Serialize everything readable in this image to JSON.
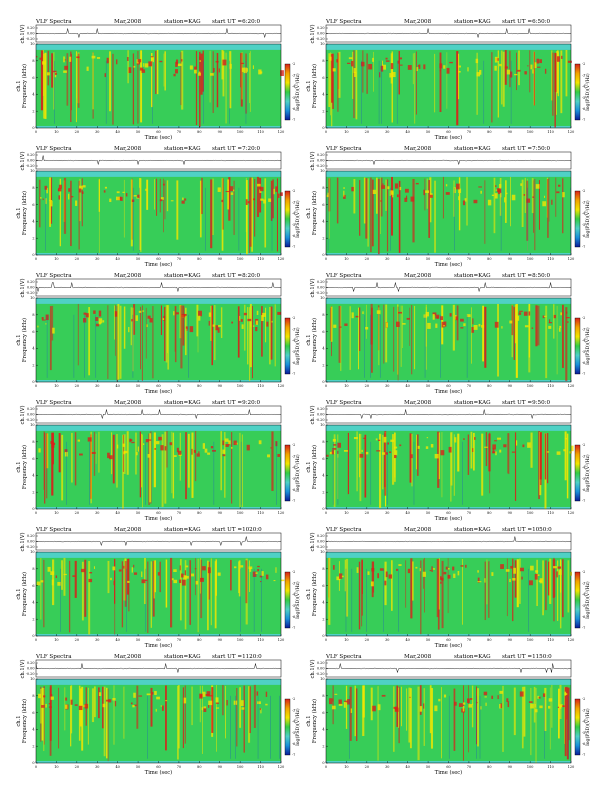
{
  "colors": {
    "spectrogram_background": "#4fd1c5",
    "spectrogram_mid": "#33cc44",
    "spectrogram_high": "#f2e600",
    "spectrogram_peak": "#d9201a",
    "spectrogram_low": "#1a3fd9",
    "colorbar_stops": [
      "#d9201a",
      "#f2a300",
      "#f2e600",
      "#33cc44",
      "#4fd1c5",
      "#1a8fd9",
      "#0a1a99"
    ]
  },
  "chart_data": [
    {
      "type": "heatmap",
      "title": "VLF Spectra",
      "date": "Mar,2008",
      "station": "station=KAG",
      "start_label": "start UT =6:20:0",
      "top_axis_label": "ch.1(V)",
      "top_ticks": [
        "0.20",
        "0.00",
        "-0.20"
      ],
      "ylabel": "Frequency (kHz)",
      "ylabel_prefix": "ch.1",
      "xlabel": "Time (sec)",
      "xlim": [
        0,
        120
      ],
      "ylim": [
        0,
        10
      ],
      "x_ticks": [
        "0",
        "10",
        "20",
        "30",
        "40",
        "50",
        "60",
        "70",
        "80",
        "90",
        "100",
        "110",
        "120"
      ],
      "y_ticks": [
        "0",
        "2",
        "4",
        "6",
        "8",
        "10"
      ],
      "colorbar_label": "log(PSD)(V²/Hz)",
      "colorbar_ticks": [
        "-2",
        "-3",
        "-4",
        "-5",
        "-6",
        "-7"
      ]
    },
    {
      "type": "heatmap",
      "title": "VLF Spectra",
      "date": "Mar,2008",
      "station": "station=KAG",
      "start_label": "start UT =6:50:0",
      "top_axis_label": "ch.1(V)",
      "top_ticks": [
        "0.20",
        "0.00",
        "-0.20"
      ],
      "ylabel": "Frequency (kHz)",
      "ylabel_prefix": "ch.1",
      "xlabel": "Time (sec)",
      "xlim": [
        0,
        120
      ],
      "ylim": [
        0,
        10
      ],
      "x_ticks": [
        "0",
        "10",
        "20",
        "30",
        "40",
        "50",
        "60",
        "70",
        "80",
        "90",
        "100",
        "110",
        "120"
      ],
      "y_ticks": [
        "0",
        "2",
        "4",
        "6",
        "8",
        "10"
      ],
      "colorbar_label": "log(PSD)(V²/Hz)",
      "colorbar_ticks": [
        "-2",
        "-3",
        "-4",
        "-5",
        "-6",
        "-7"
      ]
    },
    {
      "type": "heatmap",
      "title": "VLF Spectra",
      "date": "Mar,2008",
      "station": "station=KAG",
      "start_label": "start UT =7:20:0",
      "top_axis_label": "ch.1(V)",
      "top_ticks": [
        "0.20",
        "0.00",
        "-0.20"
      ],
      "ylabel": "Frequency (kHz)",
      "ylabel_prefix": "ch.1",
      "xlabel": "Time (sec)",
      "xlim": [
        0,
        120
      ],
      "ylim": [
        0,
        10
      ],
      "x_ticks": [
        "0",
        "10",
        "20",
        "30",
        "40",
        "50",
        "60",
        "70",
        "80",
        "90",
        "100",
        "110",
        "120"
      ],
      "y_ticks": [
        "0",
        "2",
        "4",
        "6",
        "8",
        "10"
      ],
      "colorbar_label": "log(PSD)(V²/Hz)",
      "colorbar_ticks": [
        "-2",
        "-3",
        "-4",
        "-5",
        "-6",
        "-7"
      ]
    },
    {
      "type": "heatmap",
      "title": "VLF Spectra",
      "date": "Mar,2008",
      "station": "station=KAG",
      "start_label": "start UT =7:50:0",
      "top_axis_label": "ch.1(V)",
      "top_ticks": [
        "0.20",
        "0.00",
        "-0.20"
      ],
      "ylabel": "Frequency (kHz)",
      "ylabel_prefix": "ch.1",
      "xlabel": "Time (sec)",
      "xlim": [
        0,
        120
      ],
      "ylim": [
        0,
        10
      ],
      "x_ticks": [
        "0",
        "10",
        "20",
        "30",
        "40",
        "50",
        "60",
        "70",
        "80",
        "90",
        "100",
        "110",
        "120"
      ],
      "y_ticks": [
        "0",
        "2",
        "4",
        "6",
        "8",
        "10"
      ],
      "colorbar_label": "log(PSD)(V²/Hz)",
      "colorbar_ticks": [
        "-2",
        "-3",
        "-4",
        "-5",
        "-6",
        "-7"
      ]
    },
    {
      "type": "heatmap",
      "title": "VLF Spectra",
      "date": "Mar,2008",
      "station": "station=KAG",
      "start_label": "start UT =8:20:0",
      "top_axis_label": "ch.1(V)",
      "top_ticks": [
        "0.20",
        "0.00",
        "-0.20"
      ],
      "ylabel": "Frequency (kHz)",
      "ylabel_prefix": "ch.1",
      "xlabel": "Time (sec)",
      "xlim": [
        0,
        120
      ],
      "ylim": [
        0,
        10
      ],
      "x_ticks": [
        "0",
        "10",
        "20",
        "30",
        "40",
        "50",
        "60",
        "70",
        "80",
        "90",
        "100",
        "110",
        "120"
      ],
      "y_ticks": [
        "0",
        "2",
        "4",
        "6",
        "8",
        "10"
      ],
      "colorbar_label": "log(PSD)(V²/Hz)",
      "colorbar_ticks": [
        "-2",
        "-3",
        "-4",
        "-5",
        "-6",
        "-7"
      ]
    },
    {
      "type": "heatmap",
      "title": "VLF Spectra",
      "date": "Mar,2008",
      "station": "station=KAG",
      "start_label": "start UT =8:50:0",
      "top_axis_label": "ch.1(V)",
      "top_ticks": [
        "0.20",
        "0.00",
        "-0.20"
      ],
      "ylabel": "Frequency (kHz)",
      "ylabel_prefix": "ch.1",
      "xlabel": "Time (sec)",
      "xlim": [
        0,
        120
      ],
      "ylim": [
        0,
        10
      ],
      "x_ticks": [
        "0",
        "10",
        "20",
        "30",
        "40",
        "50",
        "60",
        "70",
        "80",
        "90",
        "100",
        "110",
        "120"
      ],
      "y_ticks": [
        "0",
        "2",
        "4",
        "6",
        "8",
        "10"
      ],
      "colorbar_label": "log(PSD)(V²/Hz)",
      "colorbar_ticks": [
        "-2",
        "-3",
        "-4",
        "-5",
        "-6",
        "-7"
      ]
    },
    {
      "type": "heatmap",
      "title": "VLF Spectra",
      "date": "Mar,2008",
      "station": "station=KAG",
      "start_label": "start UT =9:20:0",
      "top_axis_label": "ch.1(V)",
      "top_ticks": [
        "0.20",
        "0.00",
        "-0.20"
      ],
      "ylabel": "Frequency (kHz)",
      "ylabel_prefix": "ch.1",
      "xlabel": "Time (sec)",
      "xlim": [
        0,
        120
      ],
      "ylim": [
        0,
        10
      ],
      "x_ticks": [
        "0",
        "10",
        "20",
        "30",
        "40",
        "50",
        "60",
        "70",
        "80",
        "90",
        "100",
        "110",
        "120"
      ],
      "y_ticks": [
        "0",
        "2",
        "4",
        "6",
        "8",
        "10"
      ],
      "colorbar_label": "log(PSD)(V²/Hz)",
      "colorbar_ticks": [
        "-2",
        "-3",
        "-4",
        "-5",
        "-6",
        "-7"
      ]
    },
    {
      "type": "heatmap",
      "title": "VLF Spectra",
      "date": "Mar,2008",
      "station": "station=KAG",
      "start_label": "start UT =9:50:0",
      "top_axis_label": "ch.1(V)",
      "top_ticks": [
        "0.20",
        "0.00",
        "-0.20"
      ],
      "ylabel": "Frequency (kHz)",
      "ylabel_prefix": "ch.1",
      "xlabel": "Time (sec)",
      "xlim": [
        0,
        120
      ],
      "ylim": [
        0,
        10
      ],
      "x_ticks": [
        "0",
        "10",
        "20",
        "30",
        "40",
        "50",
        "60",
        "70",
        "80",
        "90",
        "100",
        "110",
        "120"
      ],
      "y_ticks": [
        "0",
        "2",
        "4",
        "6",
        "8",
        "10"
      ],
      "colorbar_label": "log(PSD)(V²/Hz)",
      "colorbar_ticks": [
        "-2",
        "-3",
        "-4",
        "-5",
        "-6",
        "-7"
      ]
    },
    {
      "type": "heatmap",
      "title": "VLF Spectra",
      "date": "Mar,2008",
      "station": "station=KAG",
      "start_label": "start UT =1020:0",
      "top_axis_label": "ch.1(V)",
      "top_ticks": [
        "0.20",
        "0.00",
        "-0.20"
      ],
      "ylabel": "Frequency (kHz)",
      "ylabel_prefix": "ch.1",
      "xlabel": "Time (sec)",
      "xlim": [
        0,
        120
      ],
      "ylim": [
        0,
        10
      ],
      "x_ticks": [
        "0",
        "10",
        "20",
        "30",
        "40",
        "50",
        "60",
        "70",
        "80",
        "90",
        "100",
        "110",
        "120"
      ],
      "y_ticks": [
        "0",
        "2",
        "4",
        "6",
        "8",
        "10"
      ],
      "colorbar_label": "log(PSD)(V²/Hz)",
      "colorbar_ticks": [
        "-2",
        "-3",
        "-4",
        "-5",
        "-6",
        "-7"
      ]
    },
    {
      "type": "heatmap",
      "title": "VLF Spectra",
      "date": "Mar,2008",
      "station": "station=KAG",
      "start_label": "start UT =1050:0",
      "top_axis_label": "ch.1(V)",
      "top_ticks": [
        "0.20",
        "0.00",
        "-0.20"
      ],
      "ylabel": "Frequency (kHz)",
      "ylabel_prefix": "ch.1",
      "xlabel": "Time (sec)",
      "xlim": [
        0,
        120
      ],
      "ylim": [
        0,
        10
      ],
      "x_ticks": [
        "0",
        "10",
        "20",
        "30",
        "40",
        "50",
        "60",
        "70",
        "80",
        "90",
        "100",
        "110",
        "120"
      ],
      "y_ticks": [
        "0",
        "2",
        "4",
        "6",
        "8",
        "10"
      ],
      "colorbar_label": "log(PSD)(V²/Hz)",
      "colorbar_ticks": [
        "-2",
        "-3",
        "-4",
        "-5",
        "-6",
        "-7"
      ]
    },
    {
      "type": "heatmap",
      "title": "VLF Spectra",
      "date": "Mar,2008",
      "station": "station=KAG",
      "start_label": "start UT =1120:0",
      "top_axis_label": "ch.1(V)",
      "top_ticks": [
        "0.20",
        "0.00",
        "-0.20"
      ],
      "ylabel": "Frequency (kHz)",
      "ylabel_prefix": "ch.1",
      "xlabel": "Time (sec)",
      "xlim": [
        0,
        120
      ],
      "ylim": [
        0,
        10
      ],
      "x_ticks": [
        "0",
        "10",
        "20",
        "30",
        "40",
        "50",
        "60",
        "70",
        "80",
        "90",
        "100",
        "110",
        "120"
      ],
      "y_ticks": [
        "0",
        "2",
        "4",
        "6",
        "8",
        "10"
      ],
      "colorbar_label": "log(PSD)(V²/Hz)",
      "colorbar_ticks": [
        "-2",
        "-3",
        "-4",
        "-5",
        "-6",
        "-7"
      ]
    },
    {
      "type": "heatmap",
      "title": "VLF Spectra",
      "date": "Mar,2008",
      "station": "station=KAG",
      "start_label": "start UT =1150:0",
      "top_axis_label": "ch.1(V)",
      "top_ticks": [
        "0.20",
        "0.00",
        "-0.20"
      ],
      "ylabel": "Frequency (kHz)",
      "ylabel_prefix": "ch.1",
      "xlabel": "Time (sec)",
      "xlim": [
        0,
        120
      ],
      "ylim": [
        0,
        10
      ],
      "x_ticks": [
        "0",
        "10",
        "20",
        "30",
        "40",
        "50",
        "60",
        "70",
        "80",
        "90",
        "100",
        "110",
        "120"
      ],
      "y_ticks": [
        "0",
        "2",
        "4",
        "6",
        "8",
        "10"
      ],
      "colorbar_label": "log(PSD)(V²/Hz)",
      "colorbar_ticks": [
        "-2",
        "-3",
        "-4",
        "-5",
        "-6",
        "-7"
      ]
    }
  ]
}
